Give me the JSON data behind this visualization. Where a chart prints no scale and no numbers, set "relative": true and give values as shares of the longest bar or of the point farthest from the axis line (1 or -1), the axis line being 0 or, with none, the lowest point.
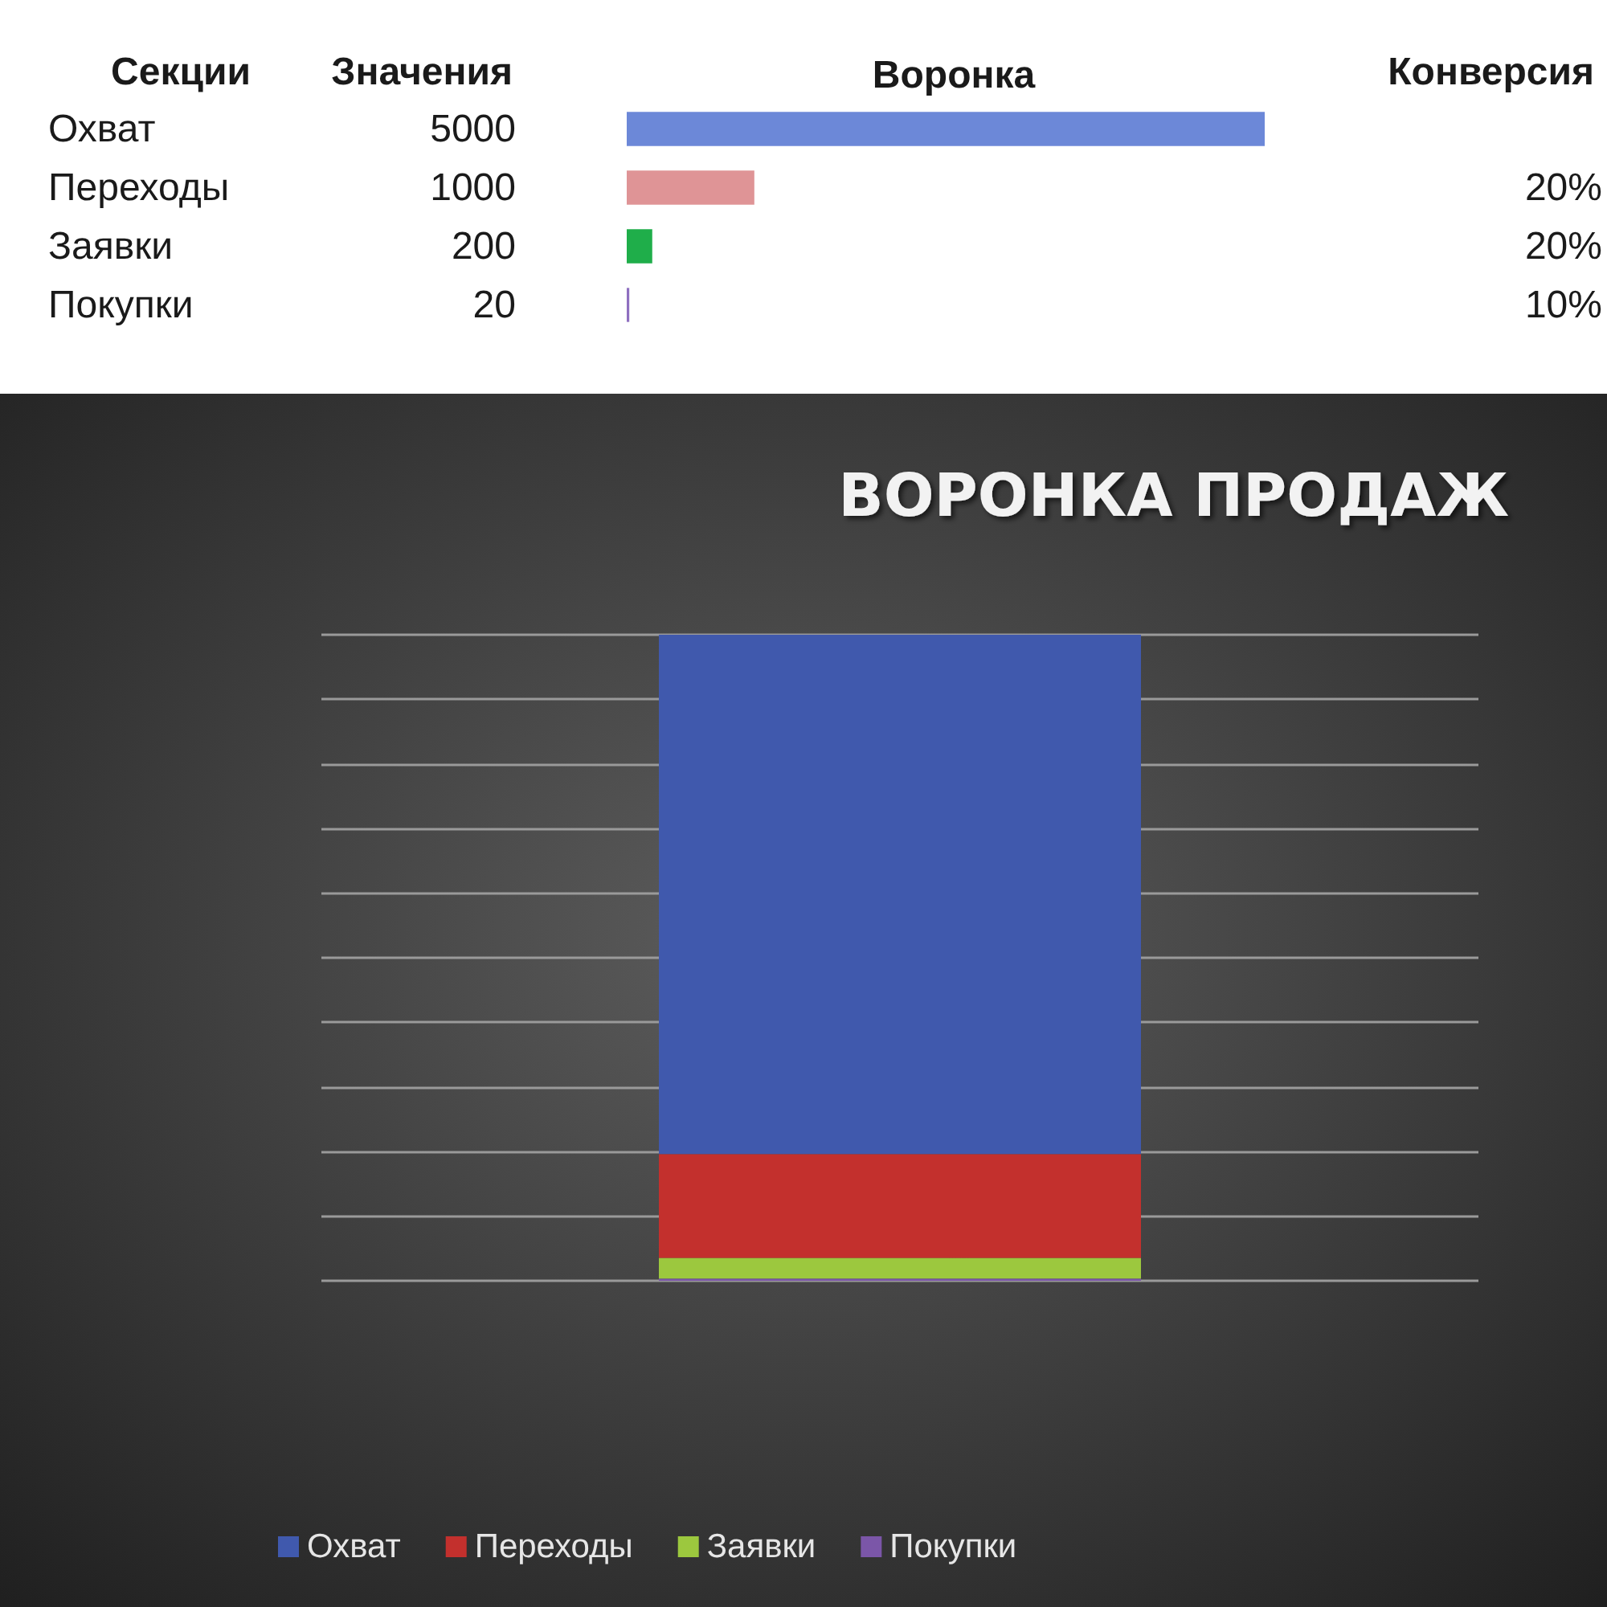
{
  "chart_data": [
    {
      "type": "bar",
      "orientation": "horizontal",
      "title": "Воронка",
      "ylabel": "Секции",
      "categories": [
        "Охват",
        "Переходы",
        "Заявки",
        "Покупки"
      ],
      "values": [
        5000,
        1000,
        200,
        20
      ],
      "colors": [
        "#6c88d8",
        "#df9496",
        "#1fae4a",
        "#8e6fc0"
      ],
      "data_labels": true,
      "annotations": [
        "Значения",
        "Конверсия",
        "20%",
        "20%",
        "10%"
      ]
    },
    {
      "type": "bar",
      "title": "ВОРОНКА ПРОДАЖ",
      "stacked": true,
      "relative": true,
      "categories": [
        null
      ],
      "series": [
        {
          "name": "Охват",
          "color": "#4059ad",
          "values": [
            -0.804
          ]
        },
        {
          "name": "Переходы",
          "color": "#c3302d",
          "values": [
            -0.161
          ]
        },
        {
          "name": "Заявки",
          "color": "#9cc83e",
          "values": [
            -0.032
          ]
        },
        {
          "name": "Покупки",
          "color": "#7b56a8",
          "values": [
            -0.003
          ]
        }
      ],
      "grid": "y",
      "legend": "bottom"
    }
  ]
}
